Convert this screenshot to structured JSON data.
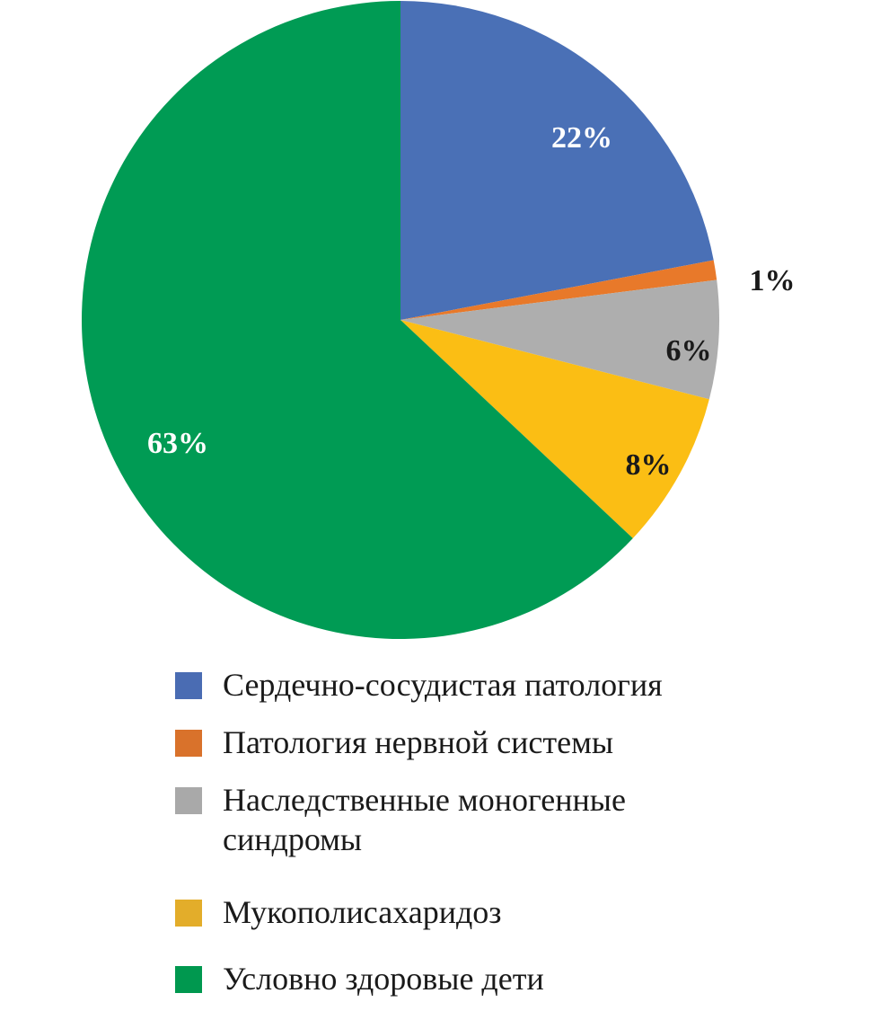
{
  "chart_data": {
    "type": "pie",
    "title": "",
    "start_angle_deg": 0,
    "direction": "clockwise",
    "slices": [
      {
        "label": "Сердечно-сосудистая патология",
        "value": 22,
        "value_label": "22%",
        "color": "#4a70b6",
        "legend_color": "#4a6cb3",
        "label_color": "#ffffff"
      },
      {
        "label": "Патология нервной системы",
        "value": 1,
        "value_label": "1%",
        "color": "#e8792a",
        "legend_color": "#d9722b",
        "label_color": "#1a1a1a"
      },
      {
        "label": "Наследственные моногенные синдромы",
        "value": 6,
        "value_label": "6%",
        "color": "#aeaeae",
        "legend_color": "#a9a9a9",
        "label_color": "#1a1a1a"
      },
      {
        "label": "Мукополисахаридоз",
        "value": 8,
        "value_label": "8%",
        "color": "#fbbe14",
        "legend_color": "#e3ad2a",
        "label_color": "#1a1a1a"
      },
      {
        "label": "Условно здоровые дети",
        "value": 63,
        "value_label": "63%",
        "color": "#009b54",
        "legend_color": "#00984f",
        "label_color": "#ffffff"
      }
    ],
    "legend_position": "bottom"
  }
}
